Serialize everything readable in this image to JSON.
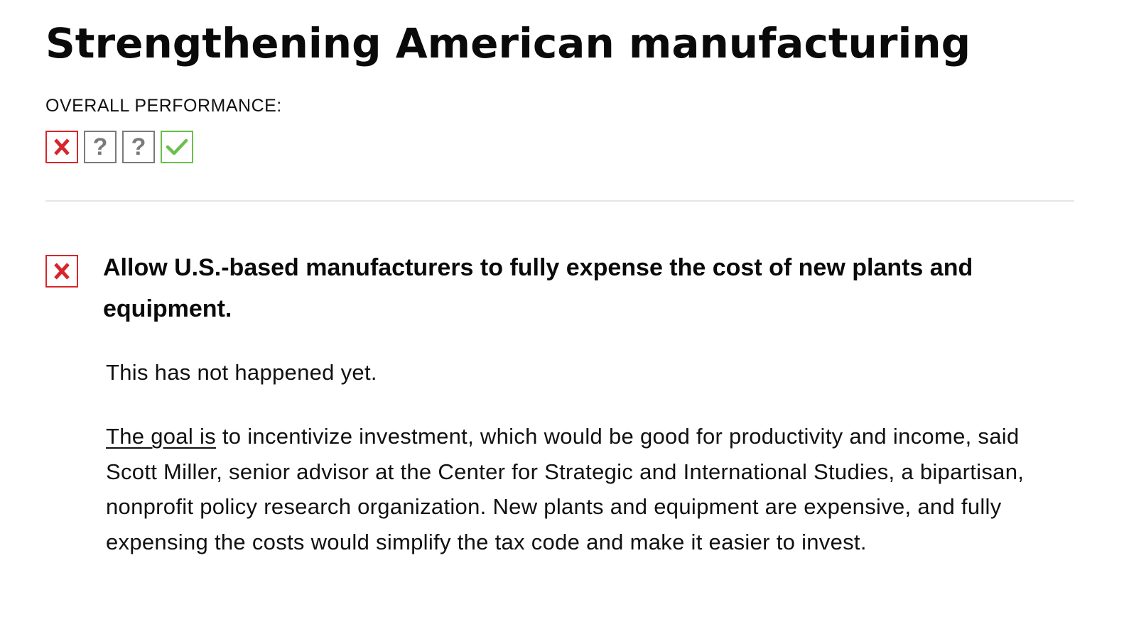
{
  "section": {
    "title": "Strengthening American manufacturing",
    "overall_label": "OVERALL PERFORMANCE:",
    "ratings": [
      {
        "status": "fail",
        "icon": "x-mark-icon",
        "glyph": "X",
        "color": "#d6262c"
      },
      {
        "status": "unknown",
        "icon": "question-mark-icon",
        "glyph": "?",
        "color": "#7a7a7a"
      },
      {
        "status": "unknown",
        "icon": "question-mark-icon",
        "glyph": "?",
        "color": "#7a7a7a"
      },
      {
        "status": "pass",
        "icon": "check-mark-icon",
        "glyph": "✓",
        "color": "#6abf4b"
      }
    ]
  },
  "item": {
    "status": "fail",
    "status_icon": "x-mark-icon",
    "status_glyph": "X",
    "heading": "Allow U.S.-based manufacturers to fully expense the cost of new plants and equipment.",
    "status_text": "This has not happened yet.",
    "body_link": "The goal is",
    "body_rest": " to incentivize investment, which would be good for productivity and income, said Scott Miller, senior advisor at the Center for Strategic and International Studies, a bipartisan, nonprofit policy research organization. New plants and equipment are expensive, and fully expensing the costs would simplify the tax code and make it easier to invest."
  },
  "colors": {
    "fail": "#d6262c",
    "unknown": "#7a7a7a",
    "pass": "#6abf4b",
    "divider": "#e6e6e6"
  }
}
